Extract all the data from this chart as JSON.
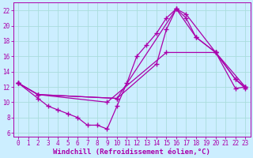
{
  "xlabel": "Windchill (Refroidissement éolien,°C)",
  "ylabel": "",
  "xlim": [
    -0.5,
    23.5
  ],
  "ylim": [
    5.5,
    23.0
  ],
  "xticks": [
    0,
    1,
    2,
    3,
    4,
    5,
    6,
    7,
    8,
    9,
    10,
    11,
    12,
    13,
    14,
    15,
    16,
    17,
    18,
    19,
    20,
    21,
    22,
    23
  ],
  "yticks": [
    6,
    8,
    10,
    12,
    14,
    16,
    18,
    20,
    22
  ],
  "background_color": "#cceeff",
  "grid_color": "#aadddd",
  "line_color": "#aa00aa",
  "lines": [
    {
      "x": [
        0,
        2,
        3,
        4,
        5,
        6,
        7,
        8,
        9,
        10,
        11,
        12,
        13,
        14,
        15,
        16,
        17,
        18,
        20,
        22,
        23
      ],
      "y": [
        12.5,
        10.5,
        9.5,
        9.0,
        8.5,
        8.0,
        7.0,
        7.0,
        6.5,
        9.5,
        12.5,
        16.0,
        17.5,
        19.0,
        21.0,
        22.2,
        21.0,
        18.5,
        16.5,
        13.0,
        12.0
      ]
    },
    {
      "x": [
        0,
        2,
        10,
        14,
        15,
        16,
        17,
        20,
        23
      ],
      "y": [
        12.5,
        11.0,
        10.5,
        15.0,
        19.5,
        22.2,
        21.5,
        16.5,
        12.0
      ]
    },
    {
      "x": [
        0,
        2,
        10,
        16,
        18,
        20,
        22,
        23
      ],
      "y": [
        12.5,
        11.0,
        10.5,
        22.2,
        18.5,
        16.5,
        11.8,
        12.0
      ]
    },
    {
      "x": [
        0,
        2,
        9,
        15,
        20,
        22,
        23
      ],
      "y": [
        12.5,
        11.0,
        10.0,
        16.5,
        16.5,
        13.0,
        11.8
      ]
    }
  ],
  "tick_fontsize": 5.5,
  "axis_fontsize": 6.5
}
